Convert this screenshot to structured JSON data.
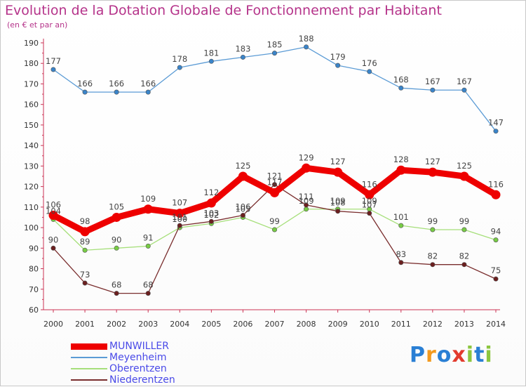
{
  "page": {
    "title": "Evolution de la Dotation Globale de Fonctionnement par Habitant",
    "subtitle": "(en € et par an)"
  },
  "logo": {
    "text": "Proxiti",
    "letters": [
      "P",
      "r",
      "o",
      "x",
      "i",
      "t",
      "i"
    ],
    "colors": [
      "#2a7fd4",
      "#f29a1f",
      "#2a7fd4",
      "#e23b2e",
      "#8cc63f",
      "#2a7fd4",
      "#8cc63f"
    ]
  },
  "chart_data": {
    "type": "line",
    "x": [
      "2000",
      "2001",
      "2002",
      "2003",
      "2004",
      "2005",
      "2006",
      "2007",
      "2008",
      "2009",
      "2010",
      "2011",
      "2012",
      "2013",
      "2014"
    ],
    "ylim": [
      60,
      190
    ],
    "yticks": [
      60,
      70,
      80,
      90,
      100,
      110,
      120,
      130,
      140,
      150,
      160,
      170,
      180,
      190
    ],
    "grid": false,
    "legend_position": "bottom-left",
    "series": [
      {
        "name": "Meyenheim",
        "color": "#5b9bd5",
        "point_color": "#3a84c9",
        "style": "thin",
        "values": [
          177,
          166,
          166,
          166,
          178,
          181,
          183,
          185,
          188,
          179,
          176,
          168,
          167,
          167,
          147
        ]
      },
      {
        "name": "Oberentzen",
        "color": "#a6df7a",
        "point_color": "#77cc44",
        "style": "thin",
        "values": [
          104,
          89,
          90,
          91,
          100,
          102,
          105,
          99,
          109,
          109,
          109,
          101,
          99,
          99,
          94
        ]
      },
      {
        "name": "Niederentzen",
        "color": "#7a2e2e",
        "point_color": "#6b1f1f",
        "style": "thin",
        "values": [
          90,
          73,
          68,
          68,
          101,
          103,
          106,
          121,
          111,
          108,
          107,
          83,
          82,
          82,
          75
        ]
      },
      {
        "name": "MUNWILLER",
        "color": "#ee0000",
        "point_color": "#ee0000",
        "style": "thick",
        "values": [
          106,
          98,
          105,
          109,
          107,
          112,
          125,
          117,
          129,
          127,
          116,
          128,
          127,
          125,
          116
        ]
      }
    ],
    "legend_order": [
      "MUNWILLER",
      "Meyenheim",
      "Oberentzen",
      "Niederentzen"
    ]
  }
}
